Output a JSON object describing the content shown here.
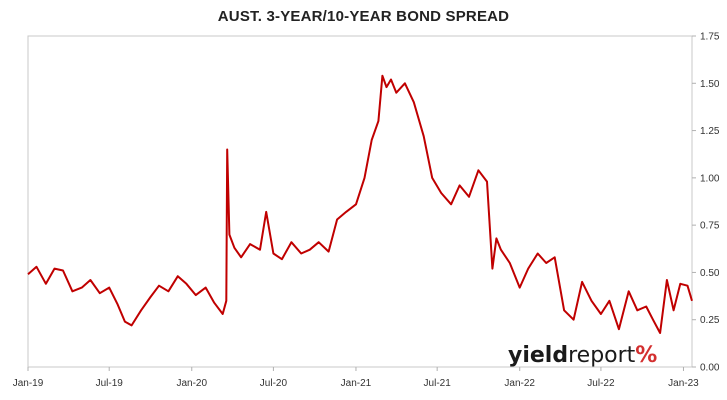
{
  "chart_data": {
    "type": "line",
    "title": "AUST. 3-YEAR/10-YEAR BOND SPREAD",
    "xlabel": "",
    "ylabel": "",
    "x_ticks": [
      "Jan-19",
      "Jul-19",
      "Jan-20",
      "Jul-20",
      "Jan-21",
      "Jul-21",
      "Jan-22",
      "Jul-22",
      "Jan-23"
    ],
    "y_ticks": [
      "0.00",
      "0.25",
      "0.50",
      "0.75",
      "1.00",
      "1.25",
      "1.50",
      "1.75"
    ],
    "xlim": [
      "2019-01-01",
      "2023-01-20"
    ],
    "ylim": [
      0,
      1.75
    ],
    "y_axis_side": "right",
    "grid": false,
    "legend": "none",
    "series": [
      {
        "color": "#c00000",
        "x": [
          "2019-01-01",
          "2019-01-20",
          "2019-02-10",
          "2019-03-01",
          "2019-03-20",
          "2019-04-10",
          "2019-05-01",
          "2019-05-20",
          "2019-06-10",
          "2019-07-01",
          "2019-07-20",
          "2019-08-05",
          "2019-08-20",
          "2019-09-10",
          "2019-10-01",
          "2019-10-20",
          "2019-11-10",
          "2019-12-01",
          "2019-12-20",
          "2020-01-10",
          "2020-02-01",
          "2020-02-20",
          "2020-03-10",
          "2020-03-18",
          "2020-03-20",
          "2020-03-25",
          "2020-04-05",
          "2020-04-20",
          "2020-05-10",
          "2020-06-01",
          "2020-06-15",
          "2020-07-01",
          "2020-07-20",
          "2020-08-10",
          "2020-09-01",
          "2020-09-20",
          "2020-10-10",
          "2020-11-01",
          "2020-11-20",
          "2020-12-10",
          "2021-01-01",
          "2021-01-20",
          "2021-02-05",
          "2021-02-20",
          "2021-03-01",
          "2021-03-10",
          "2021-03-20",
          "2021-04-01",
          "2021-04-20",
          "2021-05-10",
          "2021-06-01",
          "2021-06-20",
          "2021-07-10",
          "2021-08-01",
          "2021-08-20",
          "2021-09-10",
          "2021-10-01",
          "2021-10-20",
          "2021-11-01",
          "2021-11-10",
          "2021-11-20",
          "2021-12-10",
          "2022-01-01",
          "2022-01-20",
          "2022-02-10",
          "2022-03-01",
          "2022-03-20",
          "2022-04-10",
          "2022-05-01",
          "2022-05-20",
          "2022-06-10",
          "2022-07-01",
          "2022-07-20",
          "2022-08-10",
          "2022-09-01",
          "2022-09-20",
          "2022-10-10",
          "2022-10-25",
          "2022-11-10",
          "2022-11-25",
          "2022-12-10",
          "2022-12-25",
          "2023-01-10",
          "2023-01-20"
        ],
        "values": [
          0.49,
          0.53,
          0.44,
          0.52,
          0.51,
          0.4,
          0.42,
          0.46,
          0.39,
          0.42,
          0.33,
          0.24,
          0.22,
          0.3,
          0.37,
          0.43,
          0.4,
          0.48,
          0.44,
          0.38,
          0.42,
          0.34,
          0.28,
          0.35,
          1.15,
          0.7,
          0.63,
          0.58,
          0.65,
          0.62,
          0.82,
          0.6,
          0.57,
          0.66,
          0.6,
          0.62,
          0.66,
          0.61,
          0.78,
          0.82,
          0.86,
          1.0,
          1.2,
          1.3,
          1.54,
          1.48,
          1.52,
          1.45,
          1.5,
          1.4,
          1.22,
          1.0,
          0.92,
          0.86,
          0.96,
          0.9,
          1.04,
          0.98,
          0.52,
          0.68,
          0.62,
          0.55,
          0.42,
          0.52,
          0.6,
          0.55,
          0.58,
          0.3,
          0.25,
          0.45,
          0.35,
          0.28,
          0.35,
          0.2,
          0.4,
          0.3,
          0.32,
          0.25,
          0.18,
          0.46,
          0.3,
          0.44,
          0.43,
          0.35
        ]
      }
    ]
  },
  "watermark": {
    "text_dark": "yield",
    "text_light": "report",
    "percent": "%",
    "colors": {
      "dark": "#1a1a1a",
      "light": "#333333",
      "percent_green": "#4caf50",
      "percent_red": "#d32f2f"
    }
  }
}
